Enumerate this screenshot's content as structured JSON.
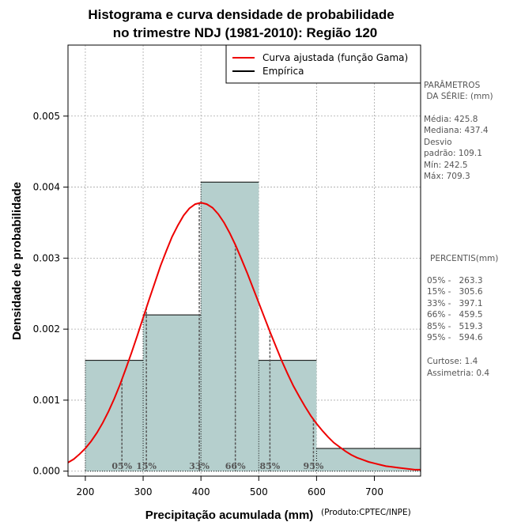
{
  "chart_data": {
    "type": "bar",
    "title": [
      "Histograma e curva densidade de probabilidade",
      "no trimestre NDJ (1981-2010): Região 120"
    ],
    "xlabel": "Precipitação acumulada (mm)",
    "ylabel": "Densidade de probabilidade",
    "credit": "(Produto:CPTEC/INPE)",
    "xlim": [
      170,
      780
    ],
    "ylim": [
      -7e-05,
      0.006
    ],
    "x_ticks": [
      200,
      300,
      400,
      500,
      600,
      700
    ],
    "y_ticks": [
      0.0,
      0.001,
      0.002,
      0.003,
      0.004,
      0.005
    ],
    "y_tick_labels": [
      "0.000",
      "0.001",
      "0.002",
      "0.003",
      "0.004",
      "0.005"
    ],
    "grid": true,
    "bins": [
      {
        "start": 200,
        "end": 300,
        "density": 0.00156
      },
      {
        "start": 300,
        "end": 400,
        "density": 0.0022
      },
      {
        "start": 400,
        "end": 500,
        "density": 0.00407
      },
      {
        "start": 500,
        "end": 600,
        "density": 0.00156
      },
      {
        "start": 600,
        "end": 800,
        "density": 0.00032
      }
    ],
    "fitted_curve": {
      "name": "Curva ajustada (função Gama)",
      "color": "#ee0000",
      "x": [
        170,
        180,
        190,
        200,
        210,
        220,
        230,
        240,
        250,
        260,
        270,
        280,
        290,
        300,
        310,
        320,
        330,
        340,
        350,
        360,
        370,
        380,
        390,
        400,
        410,
        420,
        430,
        440,
        450,
        460,
        470,
        480,
        490,
        500,
        510,
        520,
        530,
        540,
        550,
        560,
        570,
        580,
        590,
        600,
        610,
        620,
        630,
        640,
        650,
        660,
        670,
        680,
        690,
        700,
        710,
        720,
        730,
        740,
        750,
        760,
        770,
        780
      ],
      "y": [
        0.00012,
        0.00017,
        0.00024,
        0.00032,
        0.00042,
        0.00054,
        0.00068,
        0.00084,
        0.00102,
        0.00122,
        0.00144,
        0.00167,
        0.00191,
        0.00216,
        0.00241,
        0.00265,
        0.00289,
        0.0031,
        0.0033,
        0.00346,
        0.0036,
        0.0037,
        0.00376,
        0.00378,
        0.00376,
        0.00371,
        0.00362,
        0.0035,
        0.00335,
        0.00318,
        0.00299,
        0.00279,
        0.00258,
        0.00237,
        0.00216,
        0.00195,
        0.00175,
        0.00155,
        0.00137,
        0.0012,
        0.00105,
        0.00091,
        0.00078,
        0.00067,
        0.00057,
        0.00048,
        0.0004,
        0.00034,
        0.00028,
        0.00023,
        0.00019,
        0.00016,
        0.00013,
        0.00011,
        9e-05,
        7e-05,
        6e-05,
        5e-05,
        4e-05,
        3e-05,
        2e-05,
        2e-05
      ]
    },
    "empirical_legend": "Empírica",
    "percentile_markers": [
      {
        "label": "05%",
        "x": 263.3
      },
      {
        "label": "15%",
        "x": 305.6
      },
      {
        "label": "33%",
        "x": 397.1
      },
      {
        "label": "66%",
        "x": 459.5
      },
      {
        "label": "85%",
        "x": 519.3
      },
      {
        "label": "95%",
        "x": 594.6
      }
    ],
    "colors": {
      "bar_fill": "#b5cfcd",
      "grid": "#a8a8a8",
      "marker": "#555555"
    }
  },
  "side_panel": {
    "params_title": [
      "PARÂMETROS",
      " DA SÉRIE: (mm)"
    ],
    "params": [
      "Média:  425.8",
      "Mediana:  437.4",
      "Desvio",
      "padrão:  109.1",
      "Mín:  242.5",
      "Máx:  709.3"
    ],
    "percentis_title": "PERCENTIS(mm)",
    "percentis": [
      "05% -   263.3",
      "15% -   305.6",
      "33% -   397.1",
      "66% -   459.5",
      "85% -   519.3",
      "95% -   594.6"
    ],
    "extra": [
      "Curtose:  1.4",
      "Assimetria:  0.4"
    ]
  }
}
